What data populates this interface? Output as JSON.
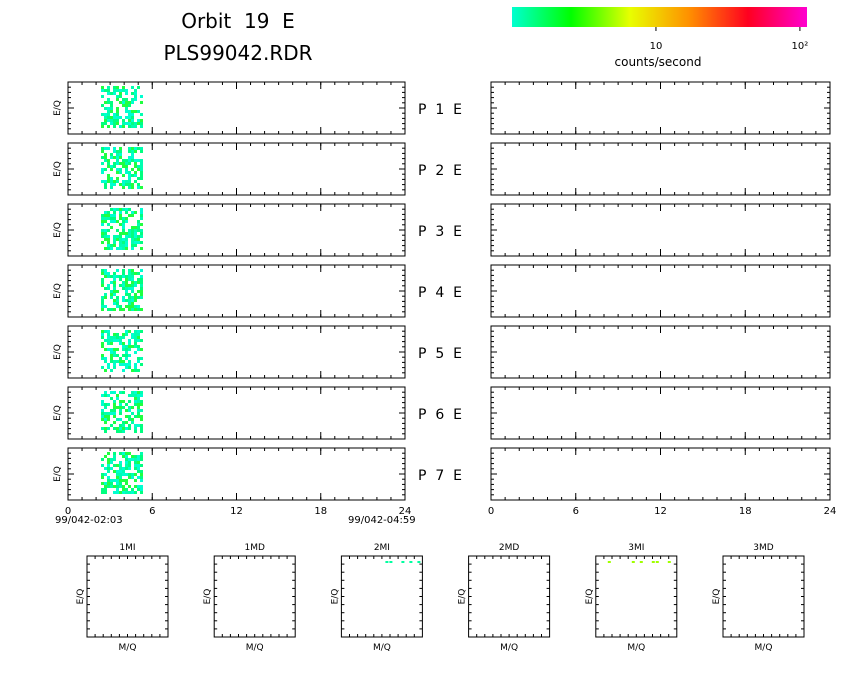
{
  "title": {
    "line1": "Orbit  19  E",
    "line2": "PLS99042.RDR"
  },
  "colorbar": {
    "scale": "log",
    "lim": [
      1,
      112
    ],
    "ticks": [
      {
        "value": 10,
        "label": "10"
      },
      {
        "value": 100,
        "label": "10²"
      }
    ],
    "label": "counts/second",
    "colors": [
      "#00ffd0",
      "#00ff00",
      "#e8ff00",
      "#ff9000",
      "#ff0020",
      "#ff00d0"
    ]
  },
  "left_panels": {
    "xlim": [
      0,
      24
    ],
    "xticks": [
      0,
      6,
      12,
      18,
      24
    ],
    "ylabel": "E/Q",
    "start": "99/042-02:03",
    "end": "99/042-04:59",
    "labels": [
      "P  1  E",
      "P  2  E",
      "P  3  E",
      "P  4  E",
      "P  5  E",
      "P  6  E",
      "P  7  E"
    ]
  },
  "right_panels": {
    "xlim": [
      0,
      24
    ],
    "xticks": [
      0,
      6,
      12,
      18,
      24
    ]
  },
  "mass_panels": {
    "titles": [
      "1MI",
      "1MD",
      "2MI",
      "2MD",
      "3MI",
      "3MD"
    ],
    "xlabel": "M/Q",
    "ylabel": "E/Q"
  }
}
